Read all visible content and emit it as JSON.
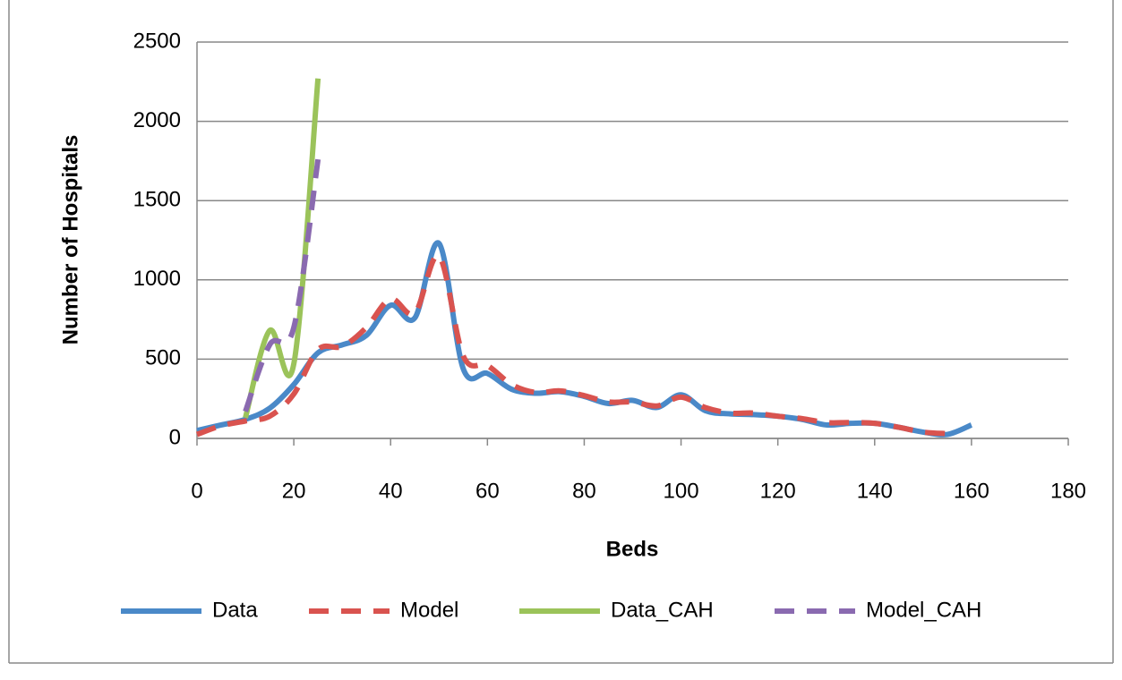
{
  "chart_data": {
    "type": "line",
    "x_label": "Beds",
    "y_label": "Number of Hospitals",
    "xlim": [
      0,
      180
    ],
    "xticks": [
      0,
      20,
      40,
      60,
      80,
      100,
      120,
      140,
      160,
      180
    ],
    "ylim": [
      0,
      2500
    ],
    "yticks": [
      0,
      500,
      1000,
      1500,
      2000,
      2500
    ],
    "grid": true,
    "legend": "bottom",
    "series": [
      {
        "name": "Data",
        "color": "#4a89c8",
        "dash": false,
        "x": [
          0,
          5,
          10,
          15,
          20,
          25,
          30,
          35,
          40,
          45,
          50,
          55,
          60,
          65,
          70,
          75,
          80,
          85,
          90,
          95,
          100,
          105,
          110,
          115,
          120,
          125,
          130,
          135,
          140,
          145,
          150,
          155,
          160
        ],
        "values": [
          50,
          85,
          120,
          190,
          340,
          540,
          590,
          650,
          840,
          760,
          1230,
          440,
          410,
          310,
          285,
          295,
          265,
          220,
          240,
          195,
          275,
          175,
          155,
          150,
          140,
          120,
          85,
          95,
          95,
          70,
          40,
          25,
          85
        ]
      },
      {
        "name": "Model",
        "color": "#d9534f",
        "dash": true,
        "x": [
          0,
          5,
          10,
          15,
          20,
          25,
          30,
          35,
          40,
          45,
          50,
          55,
          60,
          65,
          70,
          75,
          80,
          85,
          90,
          95,
          100,
          105,
          110,
          115,
          120,
          125,
          130,
          135,
          140,
          145,
          150,
          155
        ],
        "values": [
          25,
          80,
          110,
          140,
          280,
          560,
          580,
          700,
          880,
          790,
          1150,
          520,
          460,
          340,
          290,
          300,
          270,
          230,
          230,
          205,
          260,
          195,
          160,
          160,
          140,
          125,
          100,
          100,
          95,
          70,
          40,
          30
        ]
      },
      {
        "name": "Data_CAH",
        "color": "#9bc35a",
        "dash": false,
        "x": [
          10,
          15,
          20,
          25
        ],
        "values": [
          130,
          680,
          470,
          2270
        ]
      },
      {
        "name": "Model_CAH",
        "color": "#8a6ab0",
        "dash": true,
        "x": [
          10,
          15,
          20,
          25
        ],
        "values": [
          170,
          590,
          700,
          1760
        ]
      }
    ]
  }
}
